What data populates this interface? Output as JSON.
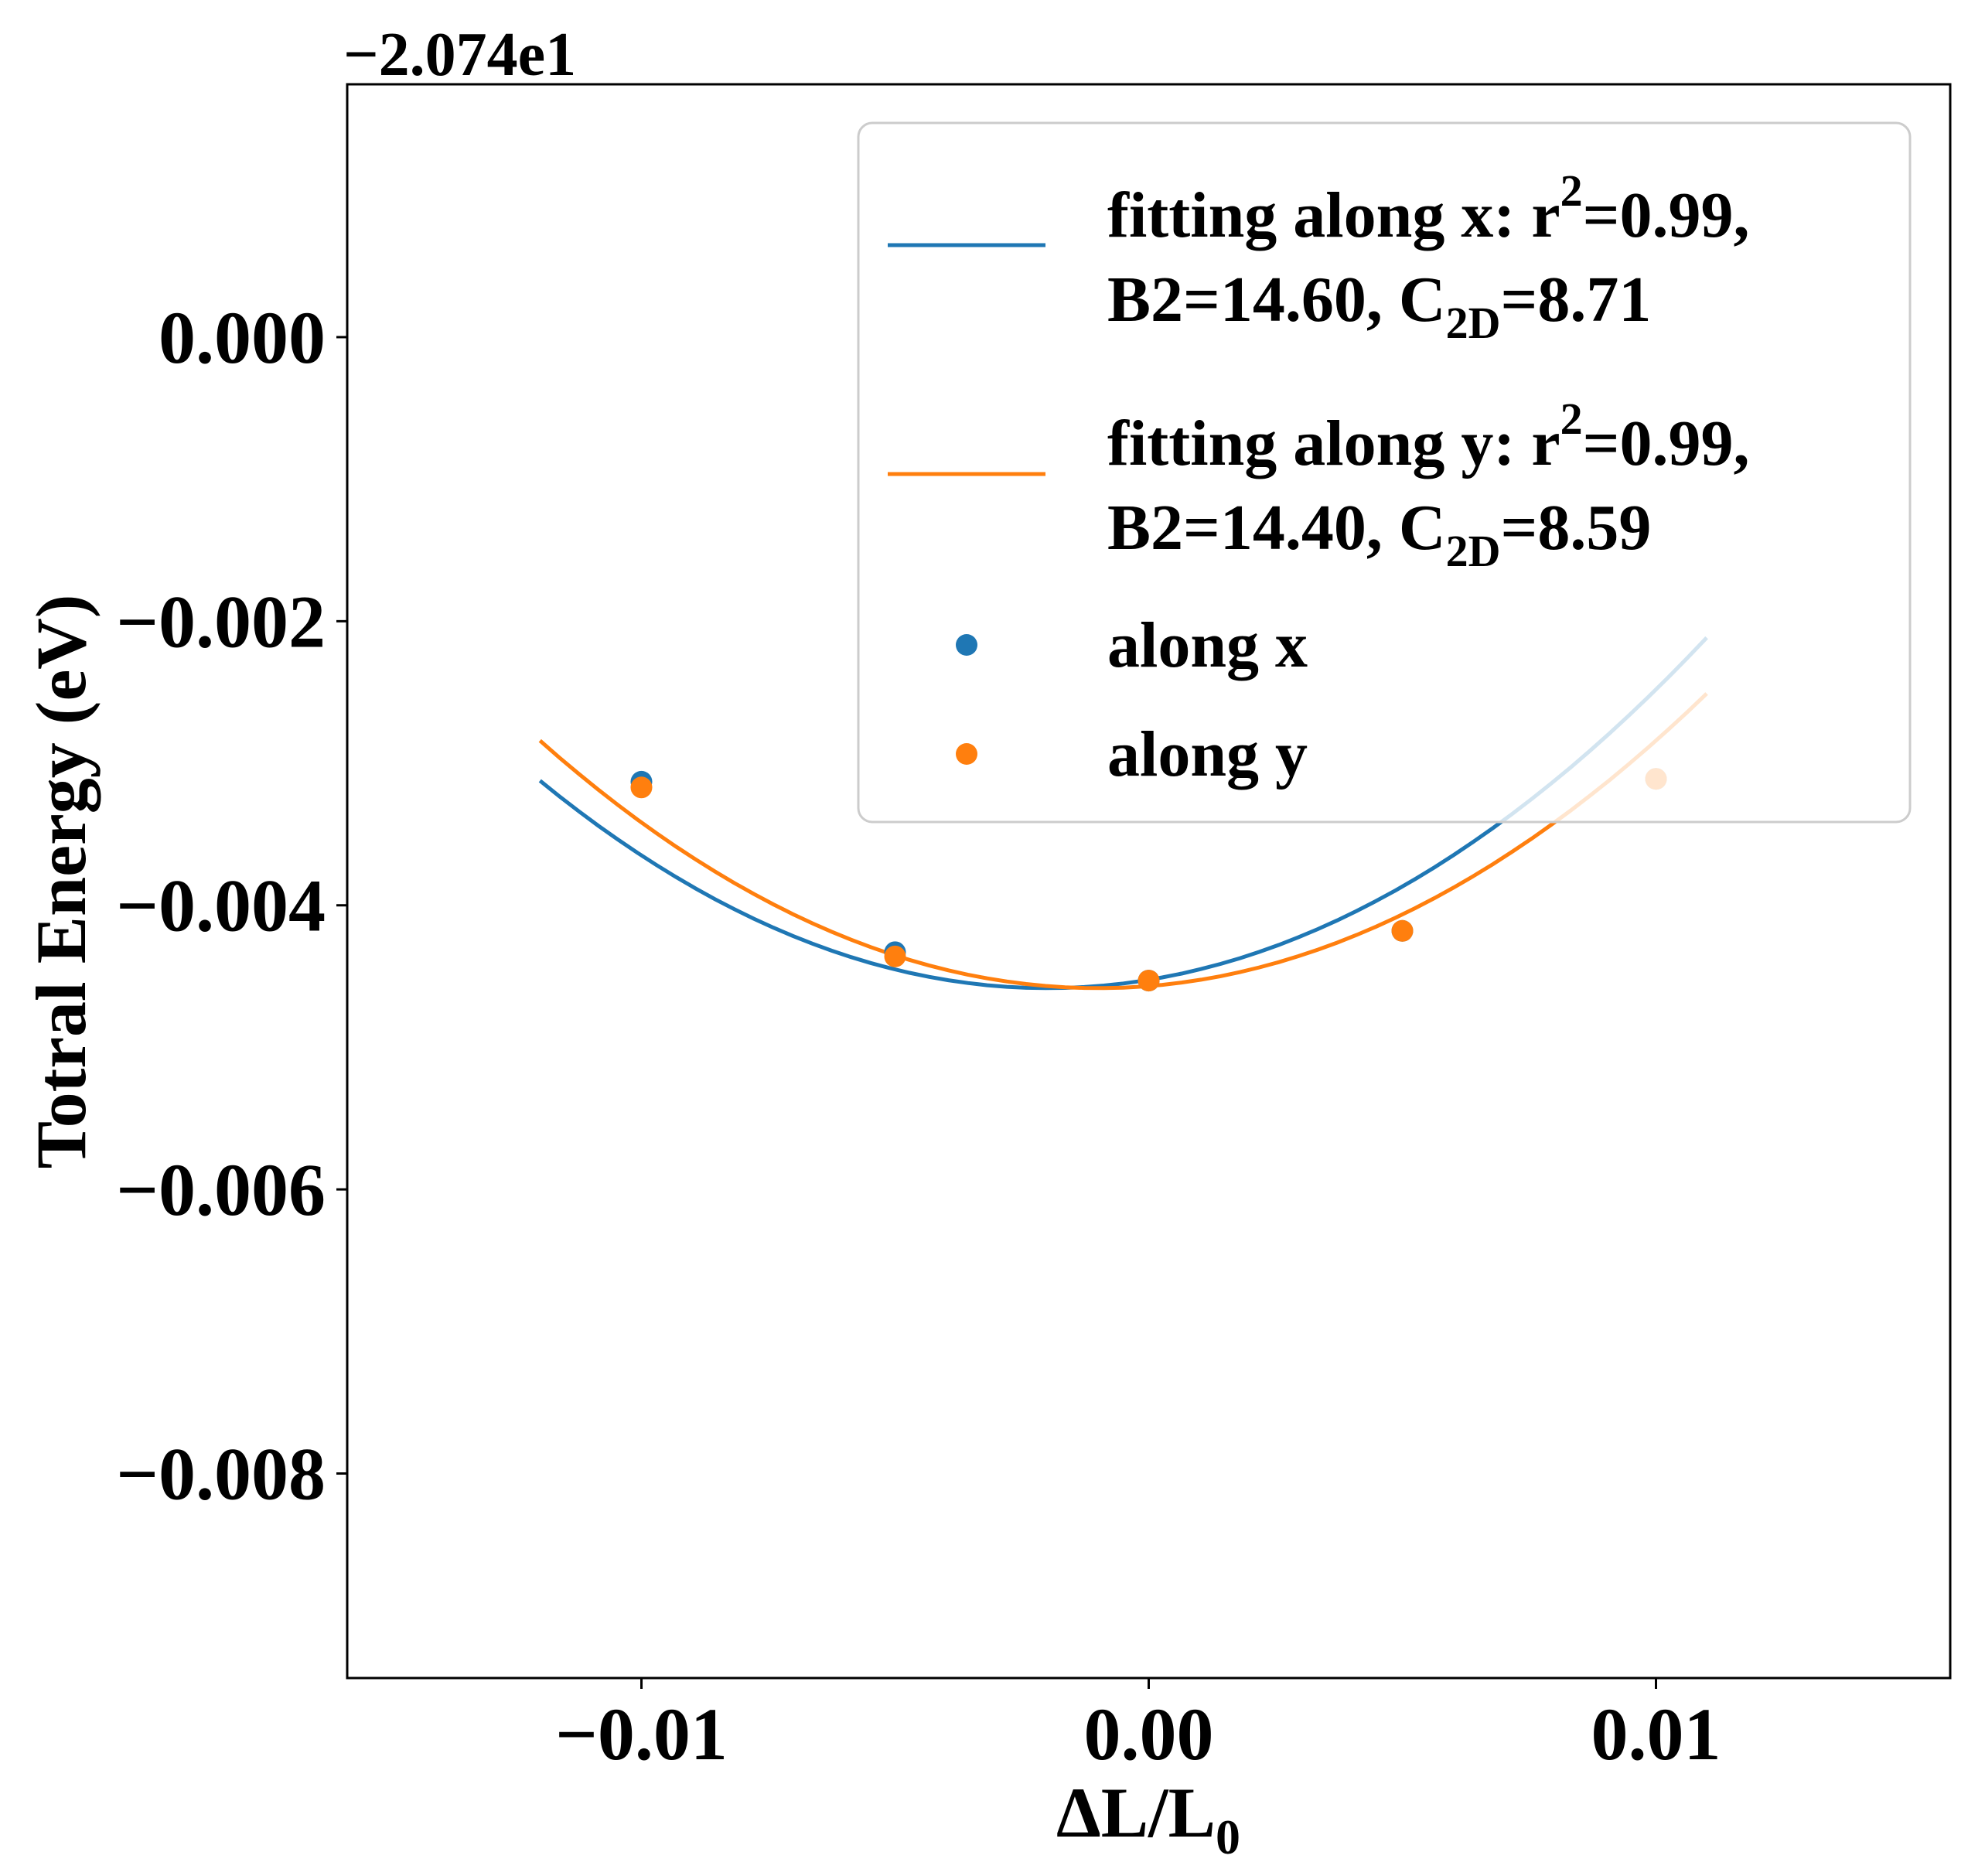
{
  "chart_data": {
    "type": "scatter",
    "title": "",
    "xlabel": "ΔL/L",
    "xlabel_subscript": "0",
    "ylabel": "Totral Energy (eV)",
    "y_offset_label": "−2.074e1",
    "xlim": [
      -0.0158,
      0.0158
    ],
    "ylim": [
      -0.00944,
      0.00178
    ],
    "x_ticks": [
      -0.01,
      0.0,
      0.01
    ],
    "x_tick_labels": [
      "−0.01",
      "0.00",
      "0.01"
    ],
    "y_ticks": [
      0.0,
      -0.002,
      -0.004,
      -0.006,
      -0.008
    ],
    "y_tick_labels": [
      "0.000",
      "−0.002",
      "−0.004",
      "−0.006",
      "−0.008"
    ],
    "grid": false,
    "legend_position": "upper right",
    "series": [
      {
        "name": "along x",
        "kind": "points",
        "color": "#1f77b4",
        "x": [
          -0.01,
          -0.005,
          0.0,
          0.005,
          0.01
        ],
        "y": [
          -0.00313,
          -0.00433,
          -0.00453,
          -0.00418,
          -0.00311
        ]
      },
      {
        "name": "along y",
        "kind": "points",
        "color": "#ff7f0e",
        "x": [
          -0.01,
          -0.005,
          0.0,
          0.005,
          0.01
        ],
        "y": [
          -0.00317,
          -0.00436,
          -0.00453,
          -0.00418,
          -0.00311
        ]
      }
    ],
    "fits": [
      {
        "label_line1_pre": "fitting along x: r",
        "label_line1_sup": "2",
        "label_line1_post": "=0.99,",
        "label_line2_pre": "B2=14.60, C",
        "label_line2_sub": "2D",
        "label_line2_post": "=8.71",
        "color": "#1f77b4",
        "x_range": [
          -0.012,
          0.011
        ],
        "coef": {
          "a": 14.6,
          "b": -0.002,
          "c": -0.004583
        }
      },
      {
        "label_line1_pre": "fitting along y: r",
        "label_line1_sup": "2",
        "label_line1_post": "=0.99,",
        "label_line2_pre": "B2=14.40, C",
        "label_line2_sub": "2D",
        "label_line2_post": "=8.59",
        "color": "#ff7f0e",
        "x_range": [
          -0.012,
          0.011
        ],
        "coef": {
          "a": 14.4,
          "b": -0.001,
          "c": -0.004583
        }
      }
    ]
  }
}
